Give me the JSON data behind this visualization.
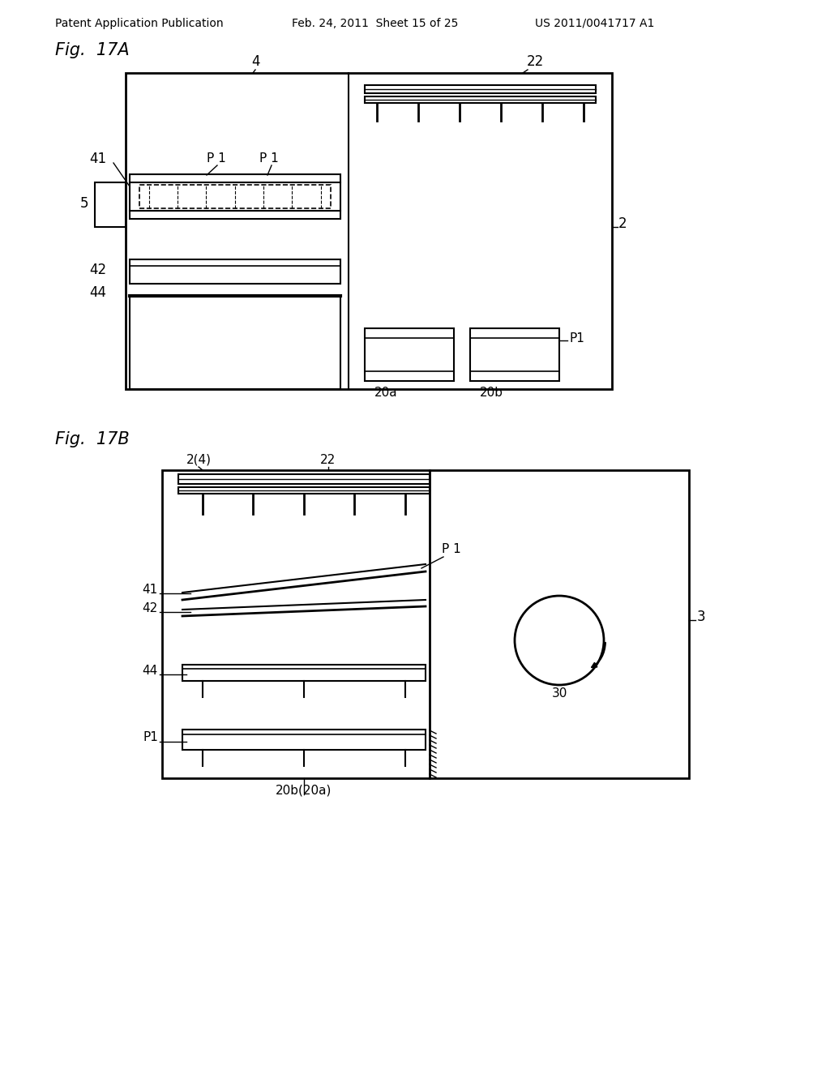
{
  "bg_color": "#ffffff",
  "line_color": "#000000",
  "header_text": "Patent Application Publication",
  "header_date": "Feb. 24, 2011  Sheet 15 of 25",
  "header_patent": "US 2011/0041717 A1"
}
